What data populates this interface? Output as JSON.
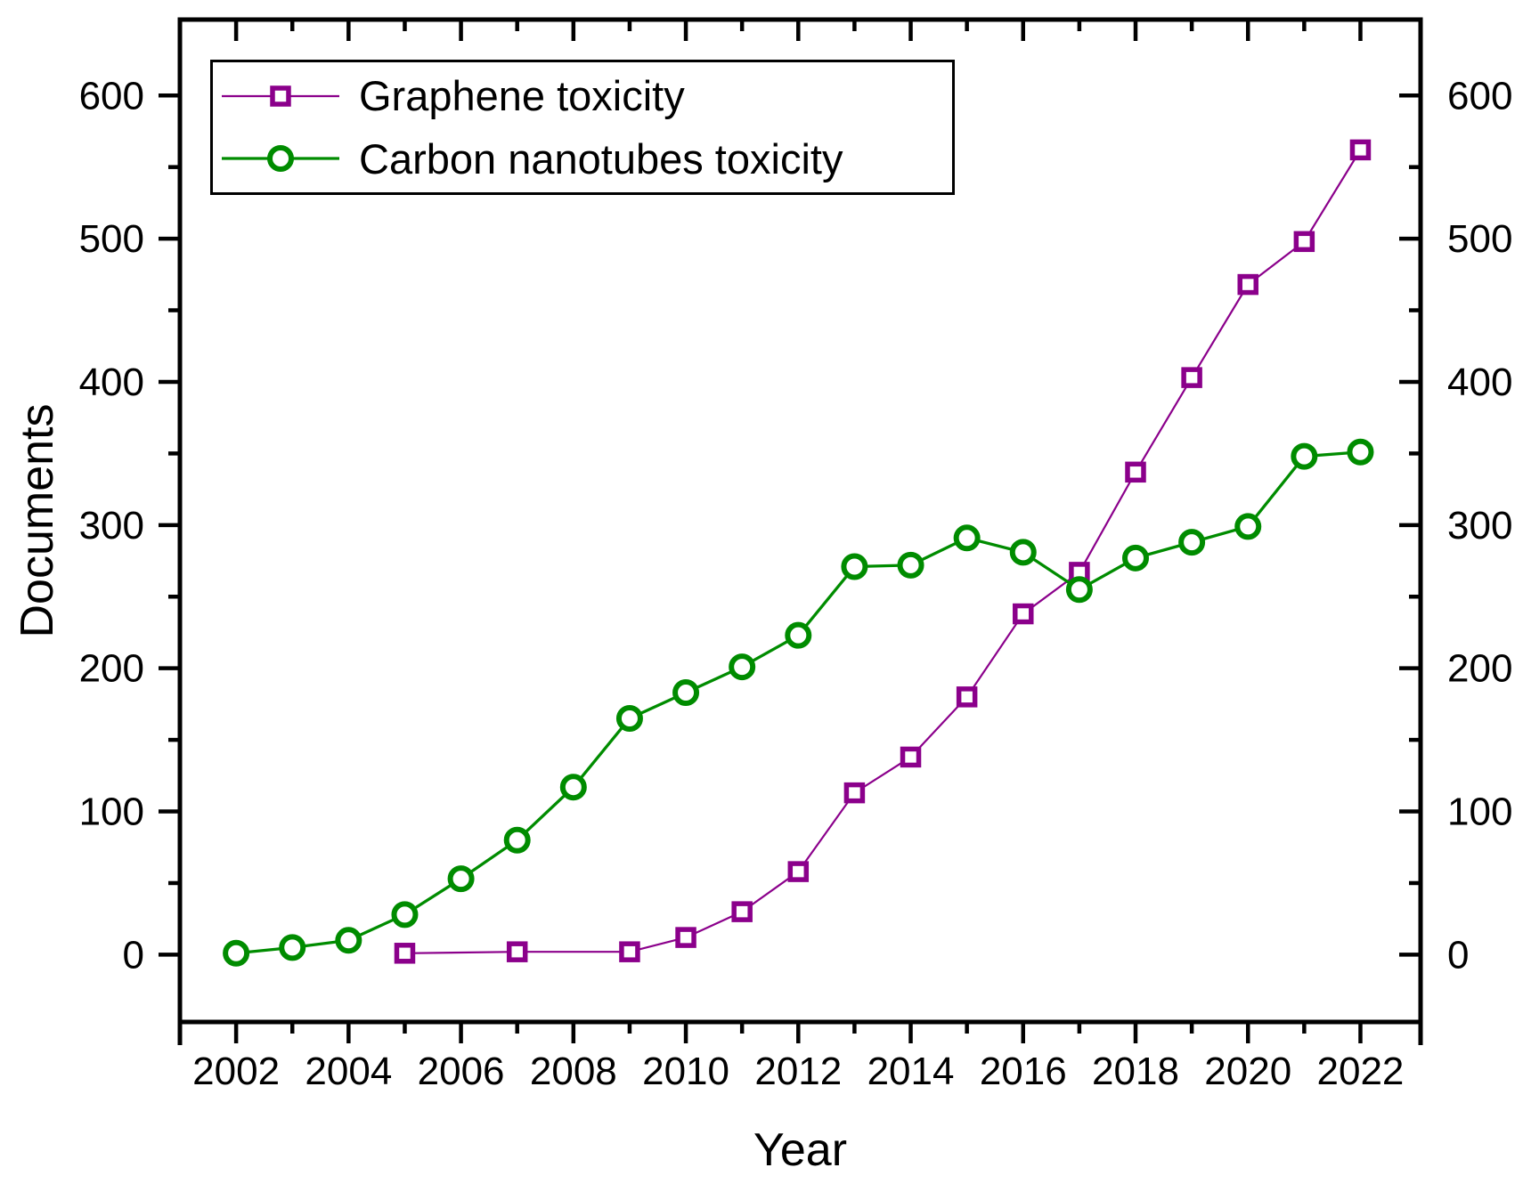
{
  "chart_data": {
    "type": "line",
    "title": "",
    "xlabel": "Year",
    "ylabel": "Documents",
    "xlim": [
      2001,
      2023.07
    ],
    "ylim": [
      -47,
      653
    ],
    "x_major_ticks": [
      2002,
      2004,
      2006,
      2008,
      2010,
      2012,
      2014,
      2016,
      2018,
      2020,
      2022
    ],
    "x_minor_ticks": [
      2003,
      2005,
      2007,
      2009,
      2011,
      2013,
      2015,
      2017,
      2019,
      2021,
      2023
    ],
    "y_major_ticks": [
      0,
      100,
      200,
      300,
      400,
      500,
      600
    ],
    "y_minor_ticks": [
      50,
      150,
      250,
      350,
      450,
      550,
      650
    ],
    "grid": false,
    "legend_position": "top-left",
    "right_axis_mirrored": true,
    "axis_color": "#000000",
    "marker_fill": "#ffffff",
    "series": [
      {
        "name": "Graphene toxicity",
        "color": "#8B008B",
        "marker": "square",
        "line_width": 2.2,
        "x": [
          2005,
          2007,
          2009,
          2010,
          2011,
          2012,
          2013,
          2014,
          2015,
          2016,
          2017,
          2018,
          2019,
          2020,
          2021,
          2022
        ],
        "values": [
          1,
          2,
          2,
          12,
          30,
          58,
          113,
          138,
          180,
          238,
          267,
          337,
          403,
          468,
          498,
          562
        ]
      },
      {
        "name": "Carbon nanotubes toxicity",
        "color": "#008C00",
        "marker": "circle",
        "line_width": 3.3,
        "x": [
          2002,
          2003,
          2004,
          2005,
          2006,
          2007,
          2008,
          2009,
          2010,
          2011,
          2012,
          2013,
          2014,
          2015,
          2016,
          2017,
          2018,
          2019,
          2020,
          2021,
          2022
        ],
        "values": [
          1,
          5,
          10,
          28,
          53,
          80,
          117,
          165,
          183,
          201,
          223,
          271,
          272,
          291,
          281,
          255,
          277,
          288,
          299,
          348,
          351
        ]
      }
    ]
  }
}
